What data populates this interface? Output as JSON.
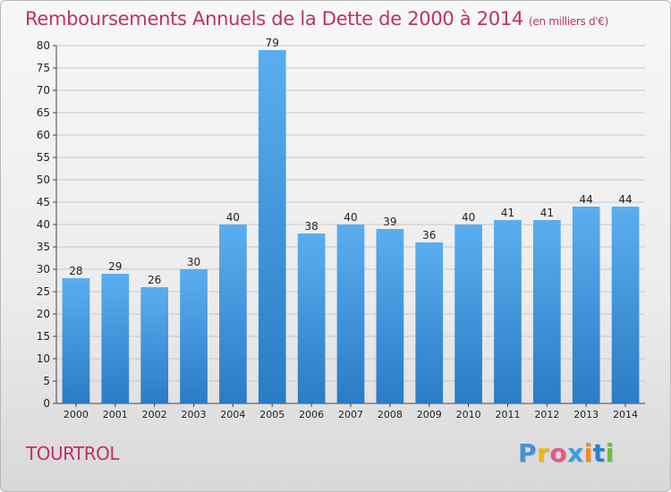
{
  "title": "Remboursements Annuels de la Dette de 2000 à 2014",
  "unit": "(en milliers d'€)",
  "commune": "TOURTROL",
  "logo": {
    "text": "Proxiti",
    "letters": [
      "P",
      "r",
      "o",
      "x",
      "i",
      "t",
      "i"
    ],
    "colors": [
      "#4a90d6",
      "#e8b81a",
      "#e25a8c",
      "#3aa0e0",
      "#f08a24",
      "#2a7fd0",
      "#6cbf3a"
    ]
  },
  "colors": {
    "bar_light": "#5aaef0",
    "bar_dark": "#2a7cc4",
    "title": "#c0306a",
    "grid": "#c8c8c8"
  },
  "chart_data": {
    "type": "bar",
    "categories": [
      "2000",
      "2001",
      "2002",
      "2003",
      "2004",
      "2005",
      "2006",
      "2007",
      "2008",
      "2009",
      "2010",
      "2011",
      "2012",
      "2013",
      "2014"
    ],
    "values": [
      28,
      29,
      26,
      30,
      40,
      79,
      38,
      40,
      39,
      36,
      40,
      41,
      41,
      44,
      44
    ],
    "ylim": [
      0,
      80
    ],
    "yticks": [
      0,
      5,
      10,
      15,
      20,
      25,
      30,
      35,
      40,
      45,
      50,
      55,
      60,
      65,
      70,
      75,
      80
    ],
    "grid": true,
    "data_labels": true
  }
}
